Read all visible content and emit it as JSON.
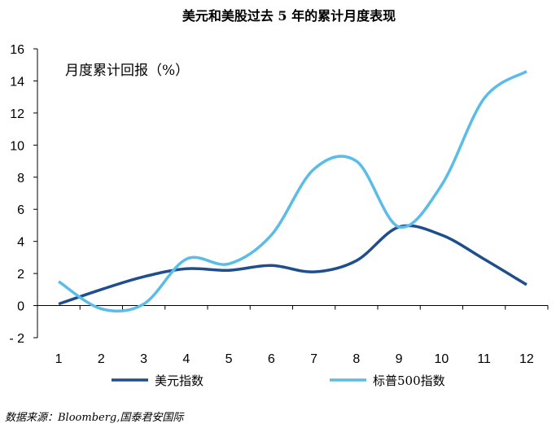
{
  "chart_data": {
    "type": "line",
    "title": "美元和美股过去 5 年的累计月度表现",
    "annotation": "月度累计回报（%）",
    "x": [
      1,
      2,
      3,
      4,
      5,
      6,
      7,
      8,
      9,
      10,
      11,
      12
    ],
    "x_tick_labels": [
      "1",
      "2",
      "3",
      "4",
      "5",
      "6",
      "7",
      "8",
      "9",
      "10",
      "11",
      "12"
    ],
    "y_tick_labels": [
      "16",
      "14",
      "12",
      "10",
      "8",
      "6",
      "4",
      "2",
      "0",
      "- 2"
    ],
    "y_ticks": [
      16,
      14,
      12,
      10,
      8,
      6,
      4,
      2,
      0,
      -2
    ],
    "ylim": [
      -2,
      16
    ],
    "grid": false,
    "legend_position": "bottom",
    "series": [
      {
        "name": "美元指数",
        "color": "#1F4E8C",
        "values": [
          0.1,
          1.0,
          1.8,
          2.3,
          2.2,
          2.5,
          2.1,
          2.8,
          4.9,
          4.4,
          2.9,
          1.3
        ]
      },
      {
        "name": "标普500指数",
        "color": "#5BBCE8",
        "values": [
          1.5,
          -0.2,
          0.1,
          2.9,
          2.6,
          4.4,
          8.5,
          9.0,
          4.9,
          7.5,
          12.9,
          14.6
        ]
      }
    ]
  },
  "source": "数据来源：Bloomberg,国泰君安国际"
}
